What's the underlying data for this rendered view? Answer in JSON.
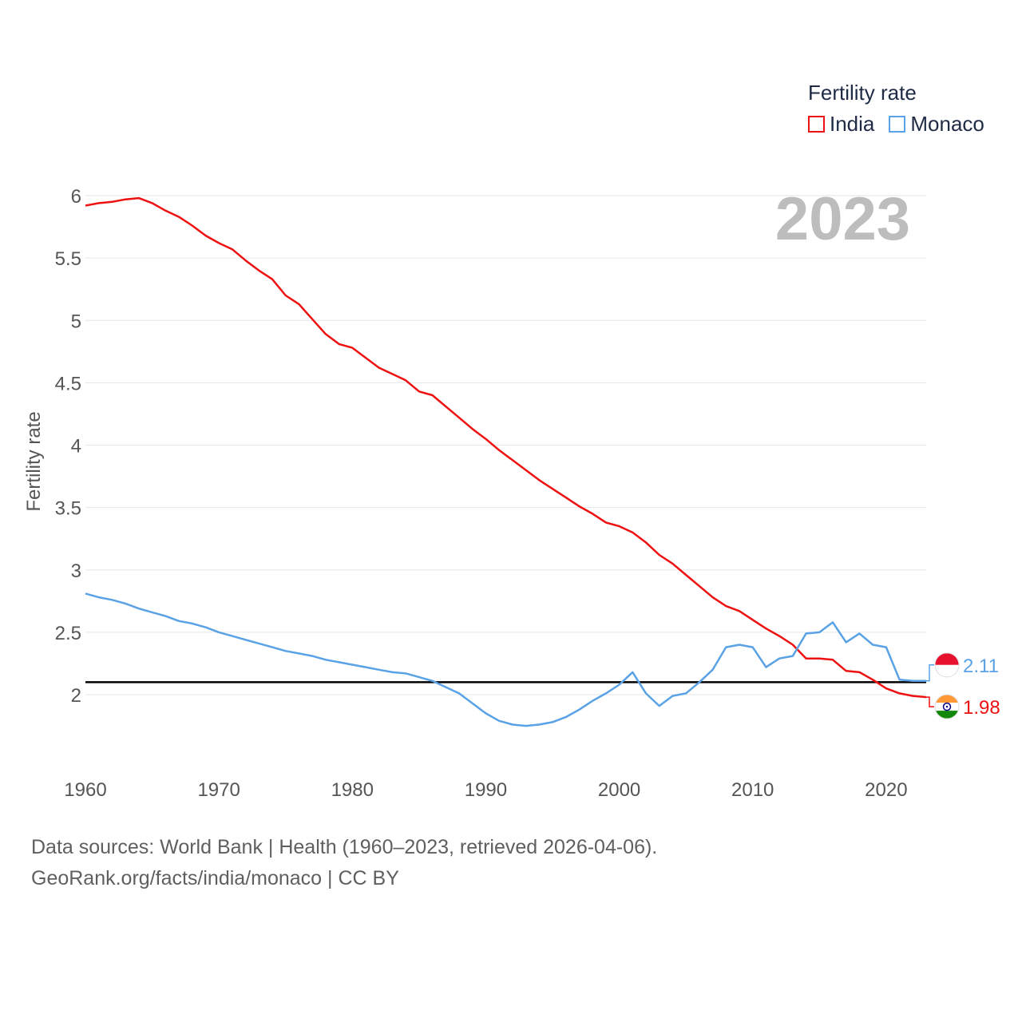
{
  "chart_data": {
    "type": "line",
    "title": "Fertility rate",
    "ylabel": "Fertility rate",
    "xlabel": "",
    "year_label": "2023",
    "xlim": [
      1960,
      2023
    ],
    "ylim": [
      1.55,
      6.15
    ],
    "x_ticks": [
      1960,
      1970,
      1980,
      1990,
      2000,
      2010,
      2020
    ],
    "y_ticks": [
      {
        "value": 2,
        "label": "2"
      },
      {
        "value": 2.5,
        "label": "2.5"
      },
      {
        "value": 3,
        "label": "3"
      },
      {
        "value": 3.5,
        "label": "3.5"
      },
      {
        "value": 4,
        "label": "4"
      },
      {
        "value": 4.5,
        "label": "4.5"
      },
      {
        "value": 5,
        "label": "5"
      },
      {
        "value": 5.5,
        "label": "5.5"
      },
      {
        "value": 6,
        "label": "6"
      }
    ],
    "reference_line": 2.1,
    "x": [
      1960,
      1961,
      1962,
      1963,
      1964,
      1965,
      1966,
      1967,
      1968,
      1969,
      1970,
      1971,
      1972,
      1973,
      1974,
      1975,
      1976,
      1977,
      1978,
      1979,
      1980,
      1981,
      1982,
      1983,
      1984,
      1985,
      1986,
      1987,
      1988,
      1989,
      1990,
      1991,
      1992,
      1993,
      1994,
      1995,
      1996,
      1997,
      1998,
      1999,
      2000,
      2001,
      2002,
      2003,
      2004,
      2005,
      2006,
      2007,
      2008,
      2009,
      2010,
      2011,
      2012,
      2013,
      2014,
      2015,
      2016,
      2017,
      2018,
      2019,
      2020,
      2021,
      2022,
      2023
    ],
    "series": [
      {
        "name": "India",
        "color": "#ee1111",
        "end_label": "1.98",
        "flag": "india-flag",
        "values": [
          5.92,
          5.94,
          5.95,
          5.97,
          5.98,
          5.94,
          5.88,
          5.83,
          5.76,
          5.68,
          5.62,
          5.57,
          5.48,
          5.4,
          5.33,
          5.2,
          5.13,
          5.01,
          4.89,
          4.81,
          4.78,
          4.7,
          4.62,
          4.57,
          4.52,
          4.43,
          4.4,
          4.31,
          4.22,
          4.13,
          4.05,
          3.96,
          3.88,
          3.8,
          3.72,
          3.65,
          3.58,
          3.51,
          3.45,
          3.38,
          3.35,
          3.3,
          3.22,
          3.12,
          3.05,
          2.96,
          2.87,
          2.78,
          2.71,
          2.67,
          2.6,
          2.53,
          2.47,
          2.4,
          2.29,
          2.29,
          2.28,
          2.19,
          2.18,
          2.12,
          2.05,
          2.01,
          1.99,
          1.98
        ]
      },
      {
        "name": "Monaco",
        "color": "#5aa2e6",
        "end_label": "2.11",
        "flag": "monaco-flag",
        "values": [
          2.81,
          2.78,
          2.76,
          2.73,
          2.69,
          2.66,
          2.63,
          2.59,
          2.57,
          2.54,
          2.5,
          2.47,
          2.44,
          2.41,
          2.38,
          2.35,
          2.33,
          2.31,
          2.28,
          2.26,
          2.24,
          2.22,
          2.2,
          2.18,
          2.17,
          2.14,
          2.11,
          2.06,
          2.01,
          1.93,
          1.85,
          1.79,
          1.76,
          1.75,
          1.76,
          1.78,
          1.82,
          1.88,
          1.95,
          2.01,
          2.08,
          2.18,
          2.01,
          1.91,
          1.99,
          2.01,
          2.1,
          2.2,
          2.38,
          2.4,
          2.38,
          2.22,
          2.29,
          2.31,
          2.49,
          2.5,
          2.58,
          2.42,
          2.49,
          2.4,
          2.38,
          2.12,
          2.11,
          2.11
        ]
      }
    ],
    "legend_position": "top-right"
  },
  "footer": {
    "line1": "Data sources: World Bank | Health (1960–2023, retrieved 2026-04-06).",
    "line2": "GeoRank.org/facts/india/monaco | CC BY"
  }
}
